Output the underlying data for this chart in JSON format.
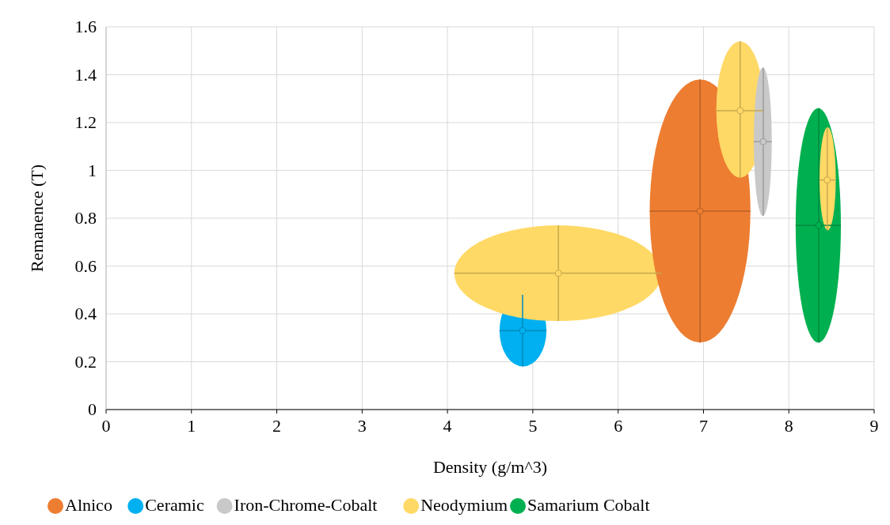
{
  "chart_data": {
    "type": "scatter",
    "xlabel": "Density (g/m^3)",
    "ylabel": "Remanence (T)",
    "xlim": [
      0,
      9
    ],
    "xticks": [
      0,
      1,
      2,
      3,
      4,
      5,
      6,
      7,
      8,
      9
    ],
    "ylim": [
      0,
      1.6
    ],
    "yticks": [
      0,
      0.2,
      0.4,
      0.6,
      0.8,
      1,
      1.2,
      1.4,
      1.6
    ],
    "grid": true,
    "legend": "bottom",
    "marker": "circle",
    "series": [
      {
        "name": "Alnico",
        "color": "#ed7d31",
        "x": [
          6.96
        ],
        "values": [
          0.83
        ],
        "errors": [
          [
            0.28,
            1.38
          ]
        ],
        "xerrors": [
          [
            6.37,
            7.55
          ]
        ]
      },
      {
        "name": "Ceramic",
        "color": "#00b0f0",
        "x": [
          4.88
        ],
        "values": [
          0.33
        ],
        "errors": [
          [
            0.18,
            0.48
          ]
        ],
        "xerrors": [
          [
            4.61,
            5.16
          ]
        ]
      },
      {
        "name": "Iron-Chrome-Cobalt",
        "color": "#c9c9c9",
        "x": [
          7.7
        ],
        "values": [
          1.12
        ],
        "errors": [
          [
            0.81,
            1.43
          ]
        ],
        "xerrors": [
          [
            7.59,
            7.8
          ]
        ]
      },
      {
        "name": "Neodymium",
        "color": "#ffd966",
        "x": [
          5.3,
          7.43,
          8.45
        ],
        "values": [
          0.57,
          1.25,
          0.96
        ],
        "errors": [
          [
            0.37,
            0.77
          ],
          [
            0.97,
            1.54
          ],
          [
            0.75,
            1.18
          ]
        ],
        "xerrors": [
          [
            4.08,
            6.51
          ],
          [
            7.15,
            7.71
          ],
          [
            8.36,
            8.55
          ]
        ]
      },
      {
        "name": "Samarium Cobalt",
        "color": "#00b050",
        "x": [
          8.35
        ],
        "values": [
          0.77
        ],
        "errors": [
          [
            0.28,
            1.26
          ]
        ],
        "xerrors": [
          [
            8.08,
            8.61
          ]
        ]
      }
    ]
  }
}
